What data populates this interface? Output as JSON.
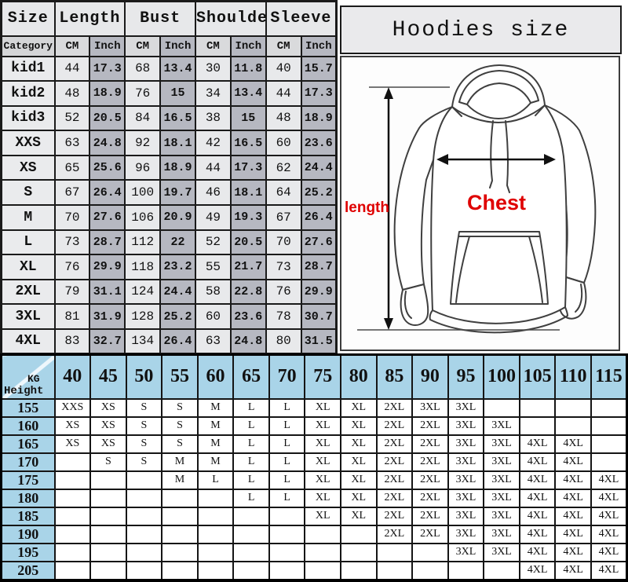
{
  "page": {
    "title": "Hoodies size"
  },
  "diagram": {
    "length_label": "length",
    "chest_label": "Chest"
  },
  "colors": {
    "table_blue": "#a9d4e8",
    "inch_column_gray": "#b6b8c1",
    "cm_column_gray": "#e8e9eb",
    "header_gray": "#e7e8ea",
    "label_red": "#df0000"
  },
  "chart_data": [
    {
      "type": "table",
      "name": "garment-measurements",
      "header": [
        "Size",
        "Length",
        "Bust",
        "Shoulder",
        "Sleeve"
      ],
      "subheader": {
        "category": "Category",
        "unit_cm": "CM",
        "unit_inch": "Inch"
      },
      "rows": [
        {
          "label": "kid1",
          "values": [
            "44",
            "17.3",
            "68",
            "13.4",
            "30",
            "11.8",
            "40",
            "15.7"
          ]
        },
        {
          "label": "kid2",
          "values": [
            "48",
            "18.9",
            "76",
            "15",
            "34",
            "13.4",
            "44",
            "17.3"
          ]
        },
        {
          "label": "kid3",
          "values": [
            "52",
            "20.5",
            "84",
            "16.5",
            "38",
            "15",
            "48",
            "18.9"
          ]
        },
        {
          "label": "XXS",
          "values": [
            "63",
            "24.8",
            "92",
            "18.1",
            "42",
            "16.5",
            "60",
            "23.6"
          ]
        },
        {
          "label": "XS",
          "values": [
            "65",
            "25.6",
            "96",
            "18.9",
            "44",
            "17.3",
            "62",
            "24.4"
          ]
        },
        {
          "label": "S",
          "values": [
            "67",
            "26.4",
            "100",
            "19.7",
            "46",
            "18.1",
            "64",
            "25.2"
          ]
        },
        {
          "label": "M",
          "values": [
            "70",
            "27.6",
            "106",
            "20.9",
            "49",
            "19.3",
            "67",
            "26.4"
          ]
        },
        {
          "label": "L",
          "values": [
            "73",
            "28.7",
            "112",
            "22",
            "52",
            "20.5",
            "70",
            "27.6"
          ]
        },
        {
          "label": "XL",
          "values": [
            "76",
            "29.9",
            "118",
            "23.2",
            "55",
            "21.7",
            "73",
            "28.7"
          ]
        },
        {
          "label": "2XL",
          "values": [
            "79",
            "31.1",
            "124",
            "24.4",
            "58",
            "22.8",
            "76",
            "29.9"
          ]
        },
        {
          "label": "3XL",
          "values": [
            "81",
            "31.9",
            "128",
            "25.2",
            "60",
            "23.6",
            "78",
            "30.7"
          ]
        },
        {
          "label": "4XL",
          "values": [
            "83",
            "32.7",
            "134",
            "26.4",
            "63",
            "24.8",
            "80",
            "31.5"
          ]
        }
      ]
    },
    {
      "type": "table",
      "name": "weight-height-size-matrix",
      "corner": {
        "top": "KG",
        "bottom": "Height"
      },
      "weights_kg": [
        "40",
        "45",
        "50",
        "55",
        "60",
        "65",
        "70",
        "75",
        "80",
        "85",
        "90",
        "95",
        "100",
        "105",
        "110",
        "115"
      ],
      "rows": [
        {
          "height": "155",
          "cells": [
            "XXS",
            "XS",
            "S",
            "S",
            "M",
            "L",
            "L",
            "XL",
            "XL",
            "2XL",
            "3XL",
            "3XL",
            "",
            "",
            "",
            ""
          ]
        },
        {
          "height": "160",
          "cells": [
            "XS",
            "XS",
            "S",
            "S",
            "M",
            "L",
            "L",
            "XL",
            "XL",
            "2XL",
            "2XL",
            "3XL",
            "3XL",
            "",
            "",
            ""
          ]
        },
        {
          "height": "165",
          "cells": [
            "XS",
            "XS",
            "S",
            "S",
            "M",
            "L",
            "L",
            "XL",
            "XL",
            "2XL",
            "2XL",
            "3XL",
            "3XL",
            "4XL",
            "4XL",
            ""
          ]
        },
        {
          "height": "170",
          "cells": [
            "",
            "S",
            "S",
            "M",
            "M",
            "L",
            "L",
            "XL",
            "XL",
            "2XL",
            "2XL",
            "3XL",
            "3XL",
            "4XL",
            "4XL",
            ""
          ]
        },
        {
          "height": "175",
          "cells": [
            "",
            "",
            "",
            "M",
            "L",
            "L",
            "L",
            "XL",
            "XL",
            "2XL",
            "2XL",
            "3XL",
            "3XL",
            "4XL",
            "4XL",
            "4XL"
          ]
        },
        {
          "height": "180",
          "cells": [
            "",
            "",
            "",
            "",
            "",
            "L",
            "L",
            "XL",
            "XL",
            "2XL",
            "2XL",
            "3XL",
            "3XL",
            "4XL",
            "4XL",
            "4XL"
          ]
        },
        {
          "height": "185",
          "cells": [
            "",
            "",
            "",
            "",
            "",
            "",
            "",
            "XL",
            "XL",
            "2XL",
            "2XL",
            "3XL",
            "3XL",
            "4XL",
            "4XL",
            "4XL"
          ]
        },
        {
          "height": "190",
          "cells": [
            "",
            "",
            "",
            "",
            "",
            "",
            "",
            "",
            "",
            "2XL",
            "2XL",
            "3XL",
            "3XL",
            "4XL",
            "4XL",
            "4XL"
          ]
        },
        {
          "height": "195",
          "cells": [
            "",
            "",
            "",
            "",
            "",
            "",
            "",
            "",
            "",
            "",
            "",
            "3XL",
            "3XL",
            "4XL",
            "4XL",
            "4XL"
          ]
        },
        {
          "height": "205",
          "cells": [
            "",
            "",
            "",
            "",
            "",
            "",
            "",
            "",
            "",
            "",
            "",
            "",
            "",
            "4XL",
            "4XL",
            "4XL"
          ]
        }
      ]
    }
  ]
}
